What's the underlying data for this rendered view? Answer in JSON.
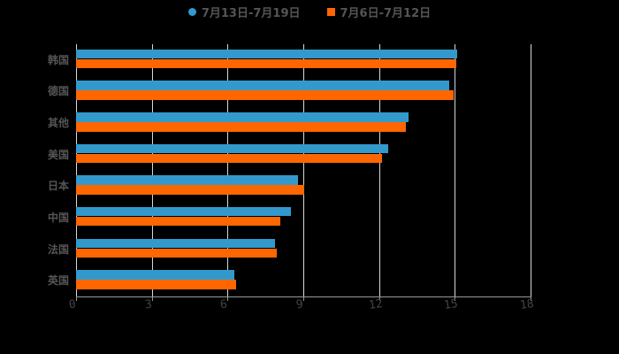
{
  "legend": [
    {
      "label": "7月13日-7月19日",
      "color": "#3399cc",
      "shape": "circle"
    },
    {
      "label": "7月6日-7月12日",
      "color": "#ff6600",
      "shape": "square"
    }
  ],
  "chart_data": {
    "type": "bar",
    "orientation": "horizontal",
    "title": "",
    "xlabel": "",
    "ylabel": "",
    "categories": [
      "韩国",
      "德国",
      "其他",
      "美国",
      "日本",
      "中国",
      "法国",
      "英国"
    ],
    "series": [
      {
        "name": "7月13日-7月19日",
        "color": "#3399cc",
        "values": [
          15.09,
          14.78,
          13.17,
          12.36,
          8.79,
          8.51,
          7.88,
          6.27
        ]
      },
      {
        "name": "7月6日-7月12日",
        "color": "#ff6600",
        "values": [
          15.06,
          14.95,
          13.06,
          12.11,
          9.03,
          8.09,
          7.95,
          6.34
        ]
      }
    ],
    "xlim": [
      0,
      18
    ],
    "xticks": [
      "0",
      "3",
      "6",
      "9",
      "12",
      "15",
      "18"
    ],
    "grid": true,
    "legend_position": "top"
  }
}
